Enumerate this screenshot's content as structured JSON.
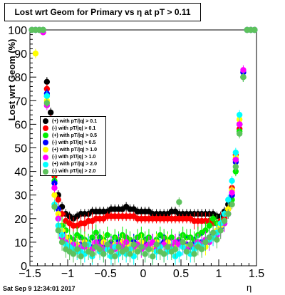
{
  "title": "Lost wrt Geom for Primary vs   η at pT > 0.11",
  "y_axis_label": "Lost wrt Geom (%)",
  "x_axis_label": "η",
  "timestamp": "Sat Sep  9 12:34:01 2017",
  "legend": [
    {
      "label": "(+) with pT/|q| > 0.1",
      "color": "#000000"
    },
    {
      "label": "(-) with pT/|q| > 0.1",
      "color": "#ff0000"
    },
    {
      "label": "(+) with pT/|q| > 0.5",
      "color": "#00ee00"
    },
    {
      "label": "(-) with pT/|q| > 0.5",
      "color": "#0000ff"
    },
    {
      "label": "(+) with pT/|q| > 1.0",
      "color": "#ffff00"
    },
    {
      "label": "(-) with pT/|q| > 1.0",
      "color": "#ff00ff"
    },
    {
      "label": "(+) with pT/|q| > 2.0",
      "color": "#00ffff"
    },
    {
      "label": "(-) with pT/|q| > 2.0",
      "color": "#5dc25d"
    }
  ],
  "chart_data": {
    "type": "scatter",
    "title": "Lost wrt Geom for Primary vs   η at pT > 0.11",
    "xlabel": "η",
    "ylabel": "Lost wrt Geom (%)",
    "xlim": [
      -1.5,
      1.5
    ],
    "ylim": [
      0,
      100
    ],
    "x_ticks": [
      -1.5,
      -1,
      -0.5,
      0,
      0.5,
      1,
      1.5
    ],
    "x_tick_labels": [
      "−1.5",
      "−1",
      "−0.5",
      "0",
      "0.5",
      "1",
      "1.5"
    ],
    "y_ticks": [
      0,
      10,
      20,
      30,
      40,
      50,
      60,
      70,
      80,
      90,
      100
    ],
    "grid": false,
    "legend_position": "left-middle",
    "x": [
      -1.475,
      -1.425,
      -1.375,
      -1.325,
      -1.275,
      -1.225,
      -1.175,
      -1.125,
      -1.075,
      -1.025,
      -0.975,
      -0.925,
      -0.875,
      -0.825,
      -0.775,
      -0.725,
      -0.675,
      -0.625,
      -0.575,
      -0.525,
      -0.475,
      -0.425,
      -0.375,
      -0.325,
      -0.275,
      -0.225,
      -0.175,
      -0.125,
      -0.075,
      -0.025,
      0.025,
      0.075,
      0.125,
      0.175,
      0.225,
      0.275,
      0.325,
      0.375,
      0.425,
      0.475,
      0.525,
      0.575,
      0.625,
      0.675,
      0.725,
      0.775,
      0.825,
      0.875,
      0.925,
      0.975,
      1.025,
      1.075,
      1.125,
      1.175,
      1.225,
      1.275,
      1.325,
      1.375,
      1.425,
      1.475
    ],
    "series": [
      {
        "name": "(+) with pT/|q| > 0.1",
        "color": "#000000",
        "values": [
          100,
          100,
          100,
          100,
          78,
          65,
          40,
          30,
          25,
          22,
          21,
          20,
          21,
          22,
          22,
          22,
          23,
          23,
          23,
          23,
          23,
          24,
          24,
          24,
          24,
          25,
          24,
          24,
          23,
          23,
          23,
          23,
          22,
          22,
          22,
          22,
          22,
          23,
          23,
          22,
          22,
          22,
          22,
          22,
          22,
          22,
          22,
          22,
          22,
          21,
          21,
          23,
          26,
          30,
          45,
          60,
          80,
          100,
          100,
          100
        ]
      },
      {
        "name": "(-) with pT/|q| > 0.1",
        "color": "#ff0000",
        "values": [
          100,
          100,
          100,
          100,
          75,
          62,
          38,
          28,
          22,
          19,
          18,
          17,
          17,
          18,
          18,
          19,
          19,
          20,
          20,
          20,
          21,
          21,
          21,
          21,
          21,
          21,
          21,
          21,
          20,
          20,
          20,
          20,
          20,
          20,
          20,
          20,
          20,
          20,
          20,
          20,
          20,
          20,
          20,
          19,
          19,
          19,
          19,
          19,
          18,
          18,
          19,
          20,
          24,
          33,
          47,
          58,
          80,
          100,
          100,
          100
        ]
      },
      {
        "name": "(+) with pT/|q| > 0.5",
        "color": "#00ee00",
        "values": [
          100,
          100,
          100,
          100,
          72,
          58,
          36,
          20,
          17,
          15,
          12,
          11,
          13,
          12,
          11,
          10,
          12,
          14,
          12,
          11,
          13,
          10,
          12,
          11,
          13,
          12,
          11,
          10,
          12,
          13,
          11,
          12,
          10,
          11,
          13,
          12,
          11,
          12,
          10,
          11,
          13,
          12,
          12,
          11,
          13,
          14,
          15,
          17,
          20,
          18,
          17,
          19,
          22,
          28,
          40,
          57,
          80,
          100,
          100,
          100
        ]
      },
      {
        "name": "(-) with pT/|q| > 0.5",
        "color": "#0000ff",
        "values": [
          100,
          100,
          100,
          99,
          73,
          60,
          35,
          24,
          14,
          11,
          10,
          9,
          9,
          9,
          10,
          9,
          8,
          9,
          10,
          9,
          8,
          9,
          9,
          10,
          9,
          8,
          9,
          10,
          9,
          8,
          9,
          9,
          10,
          8,
          9,
          10,
          9,
          8,
          9,
          10,
          9,
          9,
          8,
          9,
          10,
          10,
          11,
          12,
          13,
          14,
          16,
          18,
          22,
          30,
          44,
          60,
          82,
          100,
          100,
          100
        ]
      },
      {
        "name": "(+) with pT/|q| > 1.0",
        "color": "#ffff00",
        "values": [
          100,
          90,
          100,
          99,
          70,
          55,
          30,
          22,
          15,
          12,
          10,
          8,
          9,
          8,
          10,
          8,
          7,
          9,
          8,
          10,
          7,
          8,
          9,
          7,
          10,
          8,
          9,
          7,
          8,
          10,
          8,
          9,
          7,
          10,
          8,
          9,
          10,
          7,
          8,
          9,
          10,
          8,
          9,
          7,
          10,
          9,
          8,
          11,
          12,
          15,
          17,
          19,
          24,
          32,
          46,
          62,
          80,
          100,
          100,
          100
        ]
      },
      {
        "name": "(-) with pT/|q| > 1.0",
        "color": "#ff00ff",
        "values": [
          100,
          100,
          100,
          99,
          68,
          54,
          33,
          20,
          12,
          10,
          8,
          9,
          7,
          8,
          8,
          9,
          7,
          10,
          8,
          7,
          9,
          8,
          7,
          9,
          8,
          10,
          7,
          8,
          9,
          7,
          8,
          9,
          10,
          7,
          8,
          9,
          7,
          8,
          10,
          9,
          8,
          7,
          9,
          8,
          10,
          9,
          11,
          10,
          12,
          13,
          15,
          18,
          22,
          31,
          45,
          60,
          83,
          100,
          100,
          100
        ]
      },
      {
        "name": "(+) with pT/|q| > 2.0",
        "color": "#00ffff",
        "values": [
          100,
          100,
          100,
          100,
          72,
          59,
          26,
          17,
          13,
          9,
          8,
          7,
          6,
          6,
          5,
          9,
          4,
          8,
          6,
          5,
          7,
          4,
          8,
          5,
          6,
          5,
          7,
          4,
          6,
          8,
          5,
          7,
          4,
          6,
          8,
          5,
          6,
          7,
          4,
          5,
          8,
          6,
          5,
          7,
          9,
          8,
          10,
          11,
          12,
          14,
          18,
          22,
          28,
          36,
          48,
          64,
          80,
          100,
          100,
          100
        ]
      },
      {
        "name": "(-) with pT/|q| > 2.0",
        "color": "#5dc25d",
        "values": [
          100,
          100,
          100,
          100,
          69,
          52,
          25,
          15,
          10,
          7,
          6,
          5,
          7,
          4,
          9,
          6,
          5,
          8,
          7,
          5,
          9,
          6,
          4,
          8,
          6,
          7,
          5,
          9,
          6,
          8,
          5,
          7,
          4,
          9,
          6,
          5,
          8,
          6,
          7,
          27,
          10,
          6,
          9,
          5,
          8,
          7,
          10,
          12,
          14,
          11,
          15,
          19,
          22,
          26,
          42,
          56,
          80,
          100,
          100,
          100
        ]
      }
    ]
  }
}
